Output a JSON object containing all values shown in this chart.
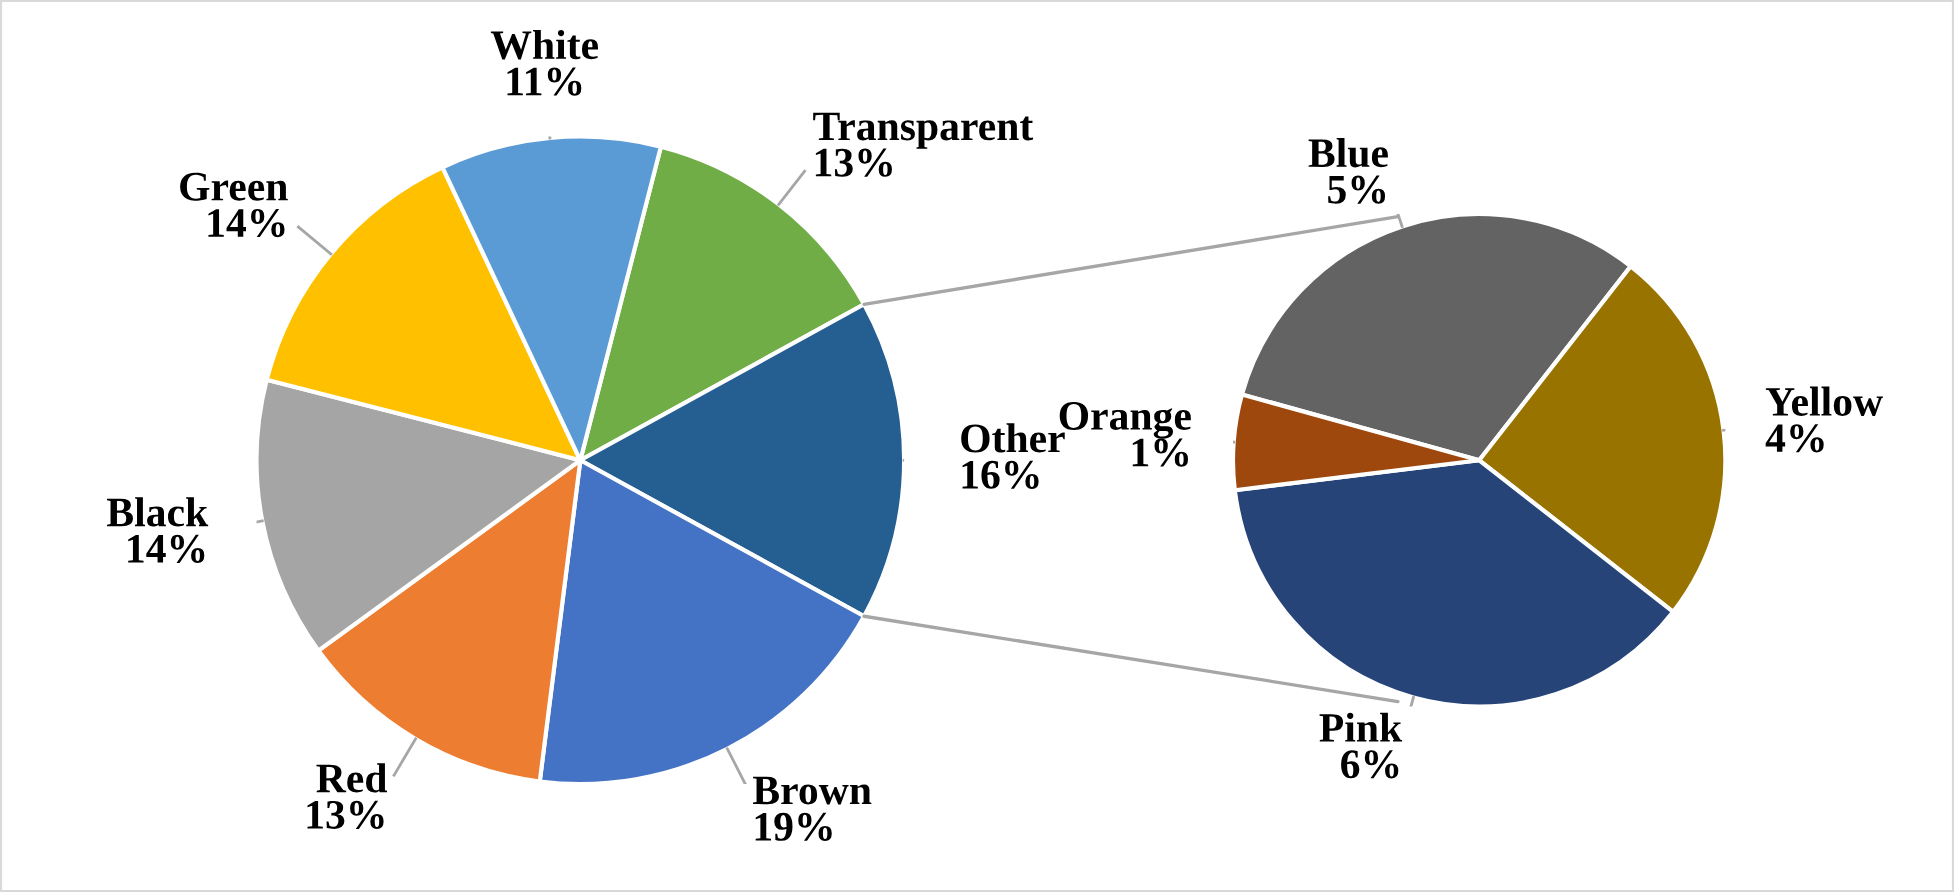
{
  "chart_data": [
    {
      "type": "pie",
      "categories": [
        "Transparent",
        "Other",
        "Brown",
        "Red",
        "Black",
        "Green",
        "White"
      ],
      "values": [
        13,
        16,
        19,
        13,
        14,
        14,
        11
      ],
      "colors": [
        "#70ad47",
        "#255e91",
        "#4472c4",
        "#ed7d31",
        "#a5a5a5",
        "#ffc000",
        "#5b9bd5"
      ],
      "value_labels": [
        "13%",
        "16%",
        "19%",
        "13%",
        "14%",
        "14%",
        "11%"
      ],
      "legend": false
    },
    {
      "type": "pie",
      "categories": [
        "Blue",
        "Yellow",
        "Pink",
        "Orange"
      ],
      "values": [
        5,
        4,
        6,
        1
      ],
      "colors": [
        "#636363",
        "#997300",
        "#264478",
        "#9e480e"
      ],
      "value_labels": [
        "5%",
        "4%",
        "6%",
        "1%"
      ],
      "legend": false
    }
  ]
}
